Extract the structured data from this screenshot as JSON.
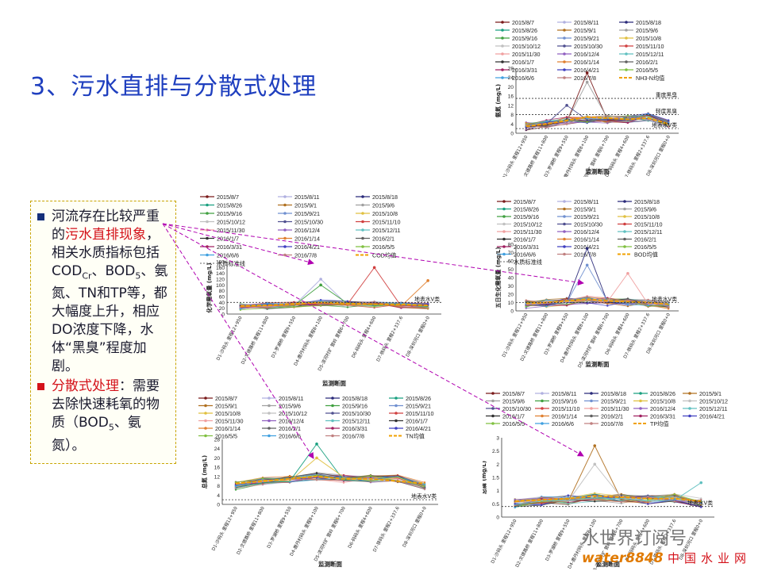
{
  "slide": {
    "title": "3、污水直排与分散式处理",
    "text": {
      "p1_a": "河流存在比较严重的",
      "p1_red": "污水直排现象",
      "p1_b": "，相关水质指标包括COD",
      "p1_sub1": "Cr",
      "p1_c": "、BOD",
      "p1_sub2": "5",
      "p1_d": "、氨氮、TN和TP等，都大幅度上升，相应DO浓度下降，水体“黑臭”程度加剧。",
      "p2_red": "分散式处理",
      "p2_a": "：需要去除快速耗氧的物质（BOD",
      "p2_sub": "5",
      "p2_b": "、氨氮）。"
    },
    "watermark": {
      "line1": "水世界订阅号",
      "site": "water8848",
      "cn": "中国水业网"
    }
  },
  "colors": {
    "title": "#1f3fbf",
    "text_red": "#d4121a",
    "bullet_blue": "#15307a",
    "box_border": "#c8a400",
    "arrow": "#b000b0"
  },
  "dates": [
    "2015/8/7",
    "2015/8/11",
    "2015/8/18",
    "2015/8/26",
    "2015/9/1",
    "2015/9/6",
    "2015/9/16",
    "2015/9/21",
    "2015/10/8",
    "2015/10/12",
    "2015/10/30",
    "2015/11/10",
    "2015/11/30",
    "2016/12/4",
    "2015/12/11",
    "2016/1/7",
    "2016/1/14",
    "2016/2/1",
    "2016/3/31",
    "2016/4/21",
    "2016/5/5",
    "2016/6/6",
    "2016/7/8"
  ],
  "series_colors": [
    "#7a1b1b",
    "#b0b0e0",
    "#2a2a7a",
    "#1aa080",
    "#b07020",
    "#a0a0a0",
    "#40a040",
    "#7090d0",
    "#e0c040",
    "#c0c0c0",
    "#505090",
    "#d04040",
    "#f0a0a0",
    "#9060c0",
    "#60c0c0",
    "#303030",
    "#e08030",
    "#606060",
    "#a02060",
    "#4040c0",
    "#80c040",
    "#40a0e0",
    "#c08080"
  ],
  "xcats": [
    "D1-沙码头 里程12+950",
    "D2-文德路桥 里程11+800",
    "D3-罗湖桥 里程9+550",
    "D4-鹿丹村码头 里程8+100",
    "D5-滨河村扩 营岭 里程6+700",
    "D6-码码头 里程4+600",
    "D7-铁码头 里程2+337.6",
    "D8-深圳河口 里程0+0"
  ],
  "chart_data": [
    {
      "type": "line",
      "ylabel": "氨氮 (mg/L)",
      "xlabel": "监测断面",
      "ylim": [
        0,
        28
      ],
      "yticks": [
        0,
        4,
        8,
        12,
        16,
        20,
        24,
        28
      ],
      "refs": [
        {
          "label": "重度黑臭",
          "value": 15
        },
        {
          "label": "轻度黑臭",
          "value": 8
        },
        {
          "label": "地表水V类",
          "value": 2
        }
      ],
      "avg_label": "NH3-N均值",
      "avg": [
        3,
        4,
        5.5,
        7,
        6.5,
        6,
        6.5,
        4
      ],
      "spikes": [
        {
          "x": 3,
          "y": 26
        },
        {
          "x": 3,
          "y": 22
        },
        {
          "x": 2,
          "y": 12
        }
      ],
      "base": [
        3,
        4,
        5.5,
        6,
        6,
        6,
        7,
        4
      ]
    },
    {
      "type": "line",
      "ylabel": "化学需氧量 (mg/L)",
      "xlabel": "监测断面",
      "ylim": [
        0,
        180
      ],
      "yticks": [
        0,
        20,
        40,
        60,
        80,
        100,
        120,
        140,
        160,
        180
      ],
      "refs": [
        {
          "label": "地表水V类",
          "value": 40
        },
        {
          "label": "水质标准线",
          "value": 40
        }
      ],
      "avg_label": "COD均值",
      "avg": [
        28,
        30,
        35,
        40,
        36,
        34,
        33,
        30
      ],
      "spikes": [
        {
          "x": 3,
          "y": 120
        },
        {
          "x": 3,
          "y": 100
        },
        {
          "x": 5,
          "y": 160
        },
        {
          "x": 7,
          "y": 115
        }
      ],
      "base": [
        25,
        28,
        32,
        38,
        34,
        32,
        30,
        28
      ]
    },
    {
      "type": "line",
      "ylabel": "五日生化需氧量 (mg/L)",
      "xlabel": "监测断面",
      "ylim": [
        0,
        80
      ],
      "yticks": [
        0,
        10,
        20,
        30,
        40,
        50,
        60,
        70,
        80
      ],
      "refs": [
        {
          "label": "地表水V类",
          "value": 10
        },
        {
          "label": "水质标准线",
          "value": 10
        }
      ],
      "avg_label": "BOD均值",
      "avg": [
        9,
        10,
        12,
        14,
        12,
        11,
        10,
        8
      ],
      "spikes": [
        {
          "x": 3,
          "y": 75
        },
        {
          "x": 3,
          "y": 55
        },
        {
          "x": 5,
          "y": 45
        }
      ],
      "base": [
        8,
        9,
        11,
        13,
        11,
        10,
        9,
        7
      ]
    },
    {
      "type": "line",
      "ylabel": "总氮 (mg/L)",
      "xlabel": "监测断面",
      "ylim": [
        0,
        28
      ],
      "yticks": [
        0,
        4,
        8,
        12,
        16,
        20,
        24,
        28
      ],
      "refs": [
        {
          "label": "地表水V类",
          "value": 2
        }
      ],
      "avg_label": "TN均值",
      "avg": [
        9,
        10,
        11,
        12,
        11,
        11,
        10,
        9
      ],
      "spikes": [
        {
          "x": 3,
          "y": 26
        },
        {
          "x": 3,
          "y": 20
        }
      ],
      "base": [
        8,
        10,
        11,
        12,
        11,
        11,
        11,
        8
      ]
    },
    {
      "type": "line",
      "ylabel": "总磷 (mg/L)",
      "xlabel": "监测断面",
      "ylim": [
        0,
        3.0
      ],
      "yticks": [
        0,
        0.5,
        1.0,
        1.5,
        2.0,
        2.5,
        3.0
      ],
      "refs": [
        {
          "label": "地表水V类",
          "value": 0.4
        }
      ],
      "avg_label": "TP均值",
      "avg": [
        0.6,
        0.65,
        0.7,
        0.8,
        0.75,
        0.7,
        0.7,
        0.6
      ],
      "spikes": [
        {
          "x": 3,
          "y": 2.7
        },
        {
          "x": 3,
          "y": 2.0
        },
        {
          "x": 7,
          "y": 1.3
        }
      ],
      "base": [
        0.5,
        0.6,
        0.65,
        0.75,
        0.7,
        0.65,
        0.7,
        0.55
      ]
    }
  ]
}
